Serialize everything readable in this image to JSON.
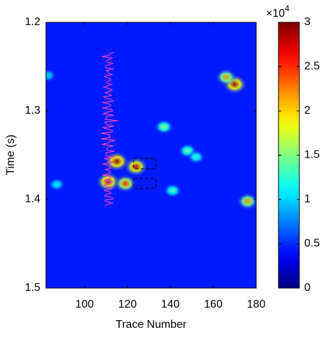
{
  "chart_data": {
    "type": "heatmap",
    "xlabel": "Trace Number",
    "ylabel": "Time (s)",
    "xlim": [
      82,
      180
    ],
    "xticks": [
      100,
      120,
      140,
      160,
      180
    ],
    "ylim": [
      1.2,
      1.5
    ],
    "yticks": [
      1.2,
      1.3,
      1.4,
      1.5
    ],
    "clim": [
      0,
      3
    ],
    "cticks": [
      0,
      0.5,
      1,
      1.5,
      2,
      2.5,
      3
    ],
    "color_scale_base": "×10",
    "color_scale_exponent": "4",
    "colormap": "jet",
    "background_value": 0.45,
    "hotspots": [
      {
        "trace": 115,
        "time": 1.357,
        "value": 3
      },
      {
        "trace": 124,
        "time": 1.363,
        "value": 2.8
      },
      {
        "trace": 111,
        "time": 1.38,
        "value": 2.9
      },
      {
        "trace": 119,
        "time": 1.382,
        "value": 2.5
      },
      {
        "trace": 170,
        "time": 1.27,
        "value": 2.9
      },
      {
        "trace": 166,
        "time": 1.262,
        "value": 2.2
      },
      {
        "trace": 176,
        "time": 1.402,
        "value": 2.2
      },
      {
        "trace": 137,
        "time": 1.318,
        "value": 1.6
      },
      {
        "trace": 148,
        "time": 1.345,
        "value": 1.5
      },
      {
        "trace": 152,
        "time": 1.352,
        "value": 1.3
      },
      {
        "trace": 141,
        "time": 1.39,
        "value": 1.4
      },
      {
        "trace": 87,
        "time": 1.383,
        "value": 1.1
      },
      {
        "trace": 83,
        "time": 1.26,
        "value": 1.0
      }
    ]
  }
}
